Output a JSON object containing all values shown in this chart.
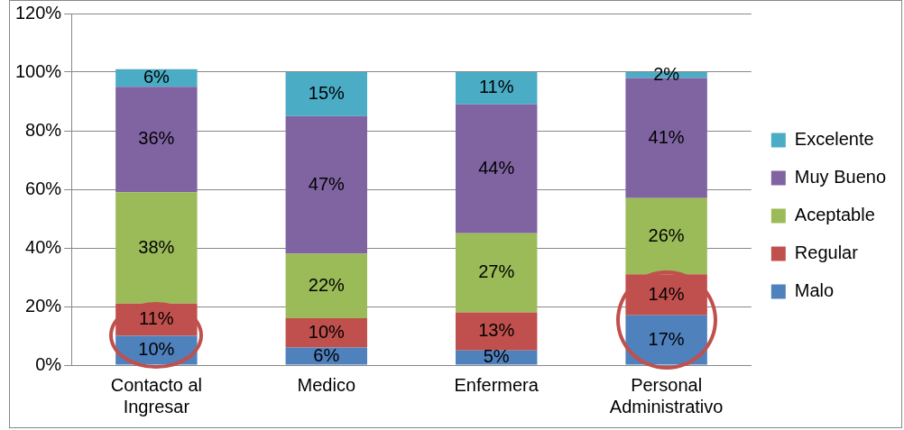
{
  "chart_data": {
    "type": "bar",
    "stacked": true,
    "categories": [
      "Contacto al Ingresar",
      "Medico",
      "Enfermera",
      "Personal Administrativo"
    ],
    "series": [
      {
        "name": "Malo",
        "color": "#4f81bd",
        "values": [
          10,
          6,
          5,
          17
        ],
        "value_labels": [
          "10%",
          "6%",
          "5%",
          "17%"
        ]
      },
      {
        "name": "Regular",
        "color": "#c0504d",
        "values": [
          11,
          10,
          13,
          14
        ],
        "value_labels": [
          "11%",
          "10%",
          "13%",
          "14%"
        ]
      },
      {
        "name": "Aceptable",
        "color": "#9bbb59",
        "values": [
          38,
          22,
          27,
          26
        ],
        "value_labels": [
          "38%",
          "22%",
          "27%",
          "26%"
        ]
      },
      {
        "name": "Muy Bueno",
        "color": "#8064a2",
        "values": [
          36,
          47,
          44,
          41
        ],
        "value_labels": [
          "36%",
          "47%",
          "44%",
          "41%"
        ]
      },
      {
        "name": "Excelente",
        "color": "#4bacc6",
        "values": [
          6,
          15,
          11,
          2
        ],
        "value_labels": [
          "6%",
          "15%",
          "11%",
          "2%"
        ]
      }
    ],
    "ylim": [
      0,
      120
    ],
    "yticks": [
      {
        "value": 0,
        "label": "0%"
      },
      {
        "value": 20,
        "label": "20%"
      },
      {
        "value": 40,
        "label": "40%"
      },
      {
        "value": 60,
        "label": "60%"
      },
      {
        "value": 80,
        "label": "80%"
      },
      {
        "value": 100,
        "label": "100%"
      },
      {
        "value": 120,
        "label": "120%"
      }
    ],
    "grid": "y",
    "legend": "right"
  }
}
